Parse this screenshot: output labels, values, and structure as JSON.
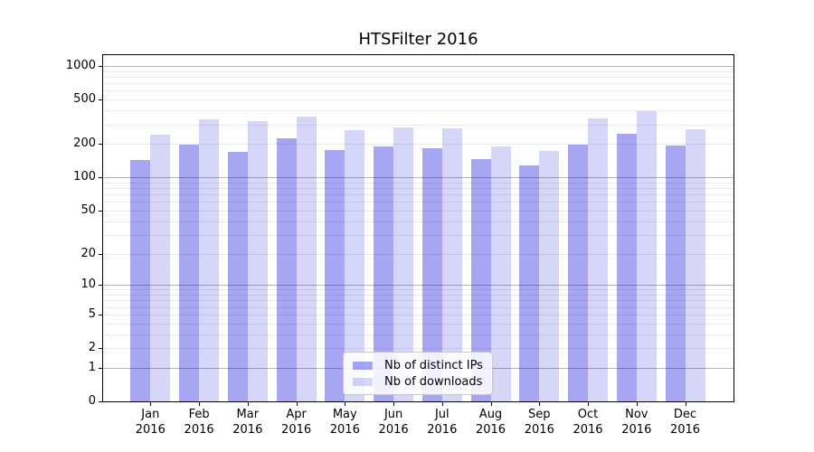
{
  "title": "HTSFilter 2016",
  "chart_data": {
    "type": "bar",
    "title": "HTSFilter 2016",
    "categories": [
      "Jan 2016",
      "Feb 2016",
      "Mar 2016",
      "Apr 2016",
      "May 2016",
      "Jun 2016",
      "Jul 2016",
      "Aug 2016",
      "Sep 2016",
      "Oct 2016",
      "Nov 2016",
      "Dec 2016"
    ],
    "series": [
      {
        "name": "Nb of distinct IPs",
        "color": "rgba(0,0,220,0.35)",
        "values": [
          143,
          199,
          169,
          226,
          177,
          189,
          184,
          147,
          127,
          199,
          247,
          192
        ]
      },
      {
        "name": "Nb of downloads",
        "color": "rgba(0,0,220,0.16)",
        "values": [
          242,
          330,
          318,
          350,
          266,
          280,
          274,
          189,
          174,
          341,
          394,
          269
        ]
      }
    ],
    "xlabel": "",
    "ylabel": "",
    "yscale": "log(value+1)",
    "yticks": [
      0,
      1,
      2,
      5,
      10,
      20,
      50,
      100,
      200,
      500,
      1000
    ],
    "ylim": [
      0,
      1250
    ],
    "grid": "horizontal major+minor",
    "legend_position": "lower-center-inside"
  },
  "legend": {
    "items": [
      {
        "label": "Nb of distinct IPs",
        "swatch_color": "rgba(0,0,220,0.35)"
      },
      {
        "label": "Nb of downloads",
        "swatch_color": "rgba(0,0,220,0.16)"
      }
    ]
  },
  "colors": {
    "background": "#ffffff",
    "bar_distinct_ips": "#a6a6f3",
    "bar_downloads": "#d8d8f9",
    "grid_major": "#b4b4b4",
    "grid_minor": "#e9e9e9",
    "axis": "#000000"
  }
}
